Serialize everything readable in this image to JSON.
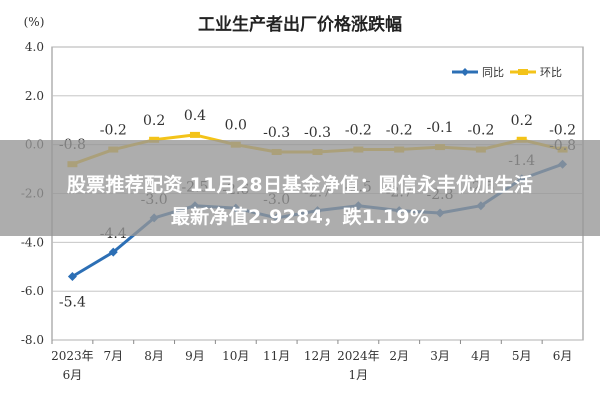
{
  "chart_data": {
    "type": "line",
    "title": "工业生产者出厂价格涨跌幅",
    "ylabel": "(%)",
    "ylim": [
      -8.0,
      4.0
    ],
    "yticks": [
      "4.0",
      "2.0",
      "0.0",
      "-2.0",
      "-4.0",
      "-6.0",
      "-8.0"
    ],
    "categories": [
      "2023年6月",
      "7月",
      "8月",
      "9月",
      "10月",
      "11月",
      "12月",
      "2024年1月",
      "2月",
      "3月",
      "4月",
      "5月",
      "6月"
    ],
    "x_tick_labels": [
      [
        "2023年",
        "6月"
      ],
      [
        "7月"
      ],
      [
        "8月"
      ],
      [
        "9月"
      ],
      [
        "10月"
      ],
      [
        "11月"
      ],
      [
        "12月"
      ],
      [
        "2024年",
        "1月"
      ],
      [
        "2月"
      ],
      [
        "3月"
      ],
      [
        "4月"
      ],
      [
        "5月"
      ],
      [
        "6月"
      ]
    ],
    "series": [
      {
        "name": "同比",
        "color": "#2c6fb5",
        "values": [
          -5.4,
          -4.4,
          -3.0,
          -2.5,
          -2.6,
          -3.0,
          -2.7,
          -2.5,
          -2.7,
          -2.8,
          -2.5,
          -1.4,
          -0.8
        ],
        "labels": [
          "-5.4",
          "-4.4",
          "-3.0",
          "-2.5",
          "-2.6",
          "-3.0",
          "-2.7",
          "-2.5",
          "-2.7",
          "-2.8",
          "-2.5",
          "-1.4",
          "-0.8"
        ]
      },
      {
        "name": "环比",
        "color": "#f3c319",
        "values": [
          -0.8,
          -0.2,
          0.2,
          0.4,
          0.0,
          -0.3,
          -0.3,
          -0.2,
          -0.2,
          -0.1,
          -0.2,
          0.2,
          -0.2
        ],
        "labels": [
          "-0.8",
          "-0.2",
          "0.2",
          "0.4",
          "0.0",
          "-0.3",
          "-0.3",
          "-0.2",
          "-0.2",
          "-0.1",
          "-0.2",
          "0.2",
          "-0.2"
        ]
      }
    ],
    "legend": "top-right",
    "grid": true
  },
  "banner": {
    "line1": "股票推荐配资 11月28日基金净值：圆信永丰优加生活",
    "line2": "最新净值2.9284，跌1.19%"
  }
}
